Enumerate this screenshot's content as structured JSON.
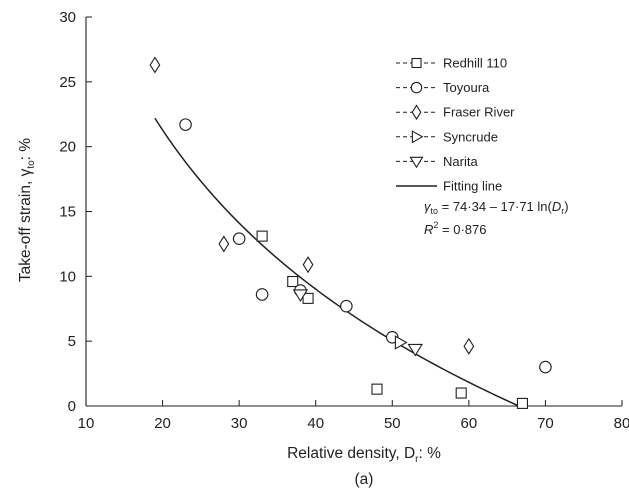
{
  "chart_data": {
    "type": "scatter",
    "xlabel": "Relative density, D",
    "xlabel_sub": "r",
    "xlabel_suffix": ": %",
    "ylabel": "Take-off strain, γ",
    "ylabel_sub": "to",
    "ylabel_suffix": ": %",
    "caption": "(a)",
    "xlim": [
      10,
      80
    ],
    "ylim": [
      0,
      30
    ],
    "xticks": [
      10,
      20,
      30,
      40,
      50,
      60,
      70,
      80
    ],
    "yticks": [
      0,
      5,
      10,
      15,
      20,
      25,
      30
    ],
    "grid": false,
    "legend_position": "top-right",
    "series": [
      {
        "name": "Redhill 110",
        "marker": "square",
        "points": [
          [
            33,
            13.1
          ],
          [
            37,
            9.6
          ],
          [
            39,
            8.3
          ],
          [
            48,
            1.3
          ],
          [
            59,
            1.0
          ],
          [
            67,
            0.2
          ]
        ]
      },
      {
        "name": "Toyoura",
        "marker": "circle",
        "points": [
          [
            23,
            21.7
          ],
          [
            30,
            12.9
          ],
          [
            33,
            8.6
          ],
          [
            38,
            8.9
          ],
          [
            44,
            7.7
          ],
          [
            50,
            5.3
          ],
          [
            70,
            3.0
          ]
        ]
      },
      {
        "name": "Fraser River",
        "marker": "diamond",
        "points": [
          [
            19,
            26.3
          ],
          [
            28,
            12.5
          ],
          [
            39,
            10.9
          ],
          [
            60,
            4.6
          ]
        ]
      },
      {
        "name": "Syncrude",
        "marker": "triangle-right",
        "points": [
          [
            51,
            4.9
          ]
        ]
      },
      {
        "name": "Narita",
        "marker": "triangle-down",
        "points": [
          [
            38,
            8.6
          ],
          [
            53,
            4.4
          ]
        ]
      }
    ],
    "fit": {
      "name": "Fitting line",
      "a": 74.34,
      "b": 17.71,
      "x_range": [
        19,
        66.5
      ],
      "equation_lhs": "γ",
      "equation_lhs_sub": "to",
      "equation_rhs_a": " = 74·34 – 17·71 ln(",
      "equation_rhs_var": "D",
      "equation_rhs_sub": "r",
      "equation_rhs_close": ")",
      "r2_label": "R",
      "r2_sup": "2",
      "r2_value": " = 0·876"
    }
  }
}
